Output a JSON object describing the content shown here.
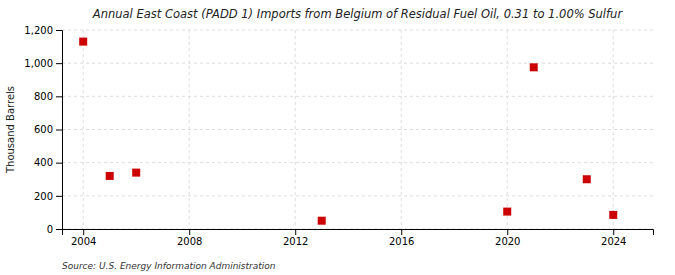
{
  "chart_data": {
    "type": "scatter",
    "title": "Annual East Coast (PADD 1) Imports from Belgium of Residual Fuel Oil, 0.31 to 1.00% Sulfur",
    "ylabel": "Thousand Barrels",
    "source": "Source: U.S. Energy Information Administration",
    "x": [
      2004,
      2005,
      2006,
      2013,
      2020,
      2021,
      2023,
      2024
    ],
    "values": [
      1130,
      320,
      340,
      50,
      105,
      975,
      300,
      85
    ],
    "color": "#cc0000",
    "marker": "square",
    "xlim": [
      2003.2,
      2025.5
    ],
    "ylim": [
      0,
      1200
    ],
    "xticks": [
      2004,
      2008,
      2012,
      2016,
      2020,
      2024
    ],
    "yticks": [
      0,
      200,
      400,
      600,
      800,
      {
        "value": 1000,
        "label": "1,000"
      },
      {
        "value": 1200,
        "label": "1,200"
      }
    ],
    "grid": true
  }
}
